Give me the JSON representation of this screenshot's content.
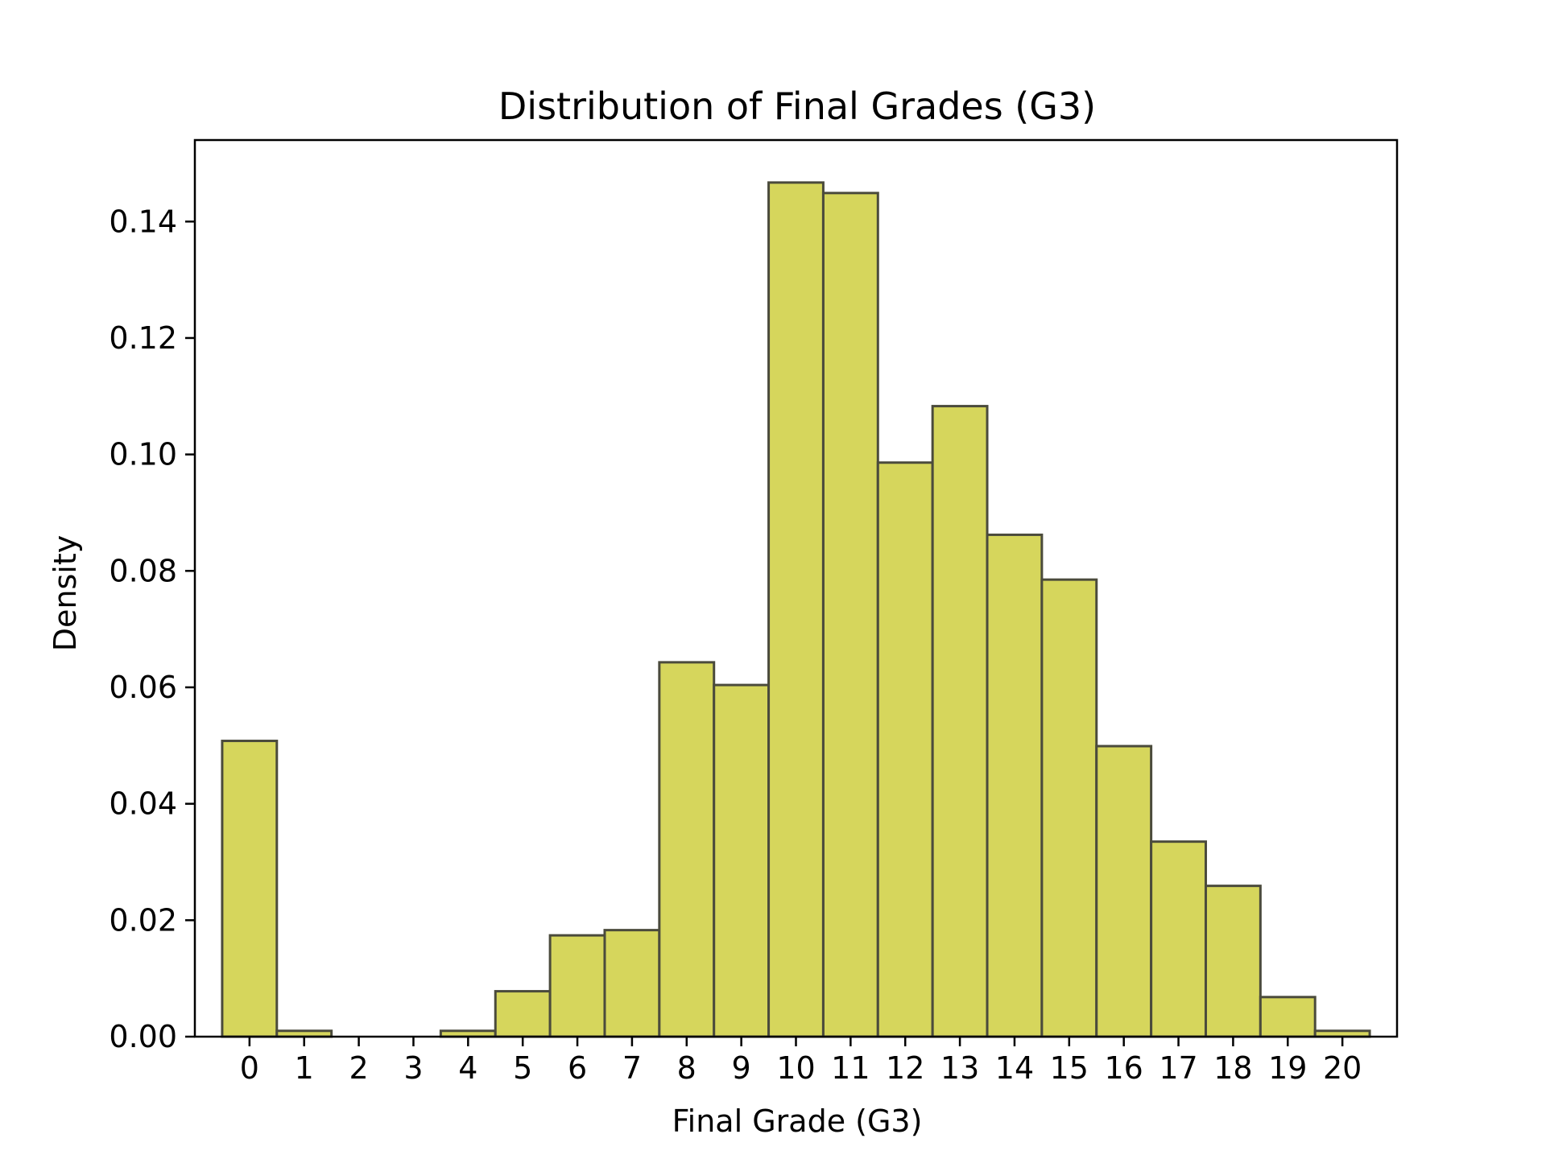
{
  "chart_data": {
    "type": "bar",
    "title": "Distribution of Final Grades (G3)",
    "xlabel": "Final Grade (G3)",
    "ylabel": "Density",
    "categories": [
      "0",
      "1",
      "2",
      "3",
      "4",
      "5",
      "6",
      "7",
      "8",
      "9",
      "10",
      "11",
      "12",
      "13",
      "14",
      "15",
      "16",
      "17",
      "18",
      "19",
      "20"
    ],
    "values": [
      0.0508,
      0.001,
      0.0,
      0.0,
      0.001,
      0.0078,
      0.0174,
      0.0183,
      0.0643,
      0.0604,
      0.1467,
      0.1449,
      0.0986,
      0.1083,
      0.0862,
      0.0785,
      0.0499,
      0.0335,
      0.0259,
      0.0068,
      0.001
    ],
    "ylim": [
      0,
      0.154
    ],
    "xlim": [
      -1,
      21
    ],
    "yticks": [
      0.0,
      0.02,
      0.04,
      0.06,
      0.08,
      0.1,
      0.12,
      0.14
    ],
    "ytick_labels": [
      "0.00",
      "0.02",
      "0.04",
      "0.06",
      "0.08",
      "0.10",
      "0.12",
      "0.14"
    ],
    "grid": false,
    "colors": {
      "bar_fill": "#d6d65c",
      "bar_edge": "#4b4b3c",
      "axis": "#000000"
    }
  }
}
